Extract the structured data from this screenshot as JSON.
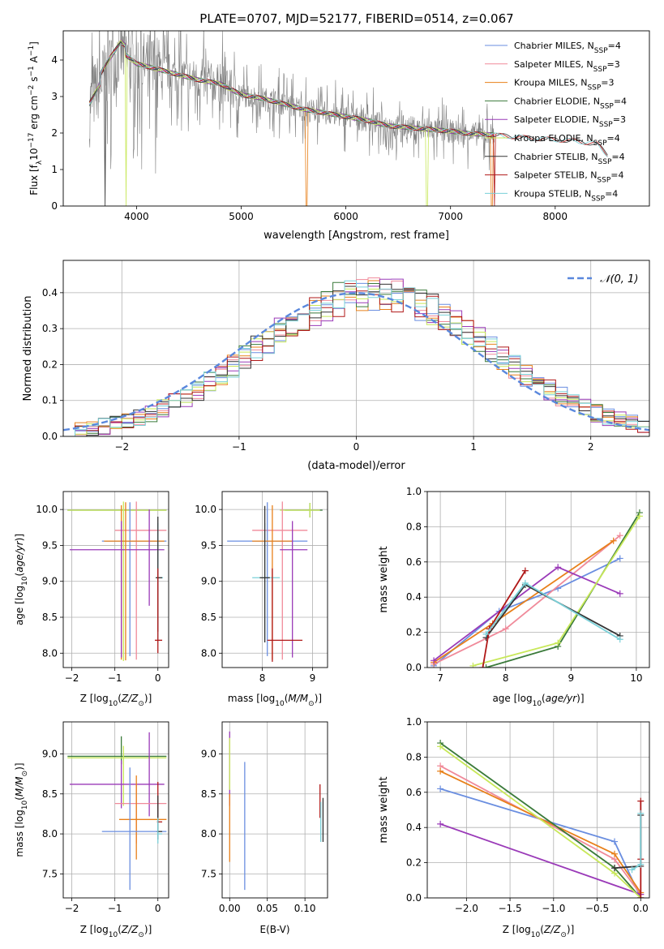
{
  "figure": {
    "title": "PLATE=0707, MJD=52177, FIBERID=0514, z=0.067"
  },
  "colors": {
    "chabrier_miles": "#6a8ee0",
    "salpeter_miles": "#f08a9a",
    "kroupa_miles": "#e8801a",
    "chabrier_elodie": "#3a7a3a",
    "salpeter_elodie": "#9a3ab8",
    "kroupa_elodie": "#c8e85a",
    "chabrier_stelib": "#333333",
    "salpeter_stelib": "#b01818",
    "kroupa_stelib": "#7ad0d8",
    "data": "#808080",
    "normal": "#5a88dd",
    "grid": "#b0b0b0"
  },
  "legend_labels": [
    {
      "base": "Chabrier MILES, N",
      "sub": "SSP",
      "tail": "=4"
    },
    {
      "base": "Salpeter MILES, N",
      "sub": "SSP",
      "tail": "=3"
    },
    {
      "base": "Kroupa MILES, N",
      "sub": "SSP",
      "tail": "=3"
    },
    {
      "base": "Chabrier ELODIE, N",
      "sub": "SSP",
      "tail": "=4"
    },
    {
      "base": "Salpeter ELODIE, N",
      "sub": "SSP",
      "tail": "=3"
    },
    {
      "base": "Kroupa ELODIE, N",
      "sub": "SSP",
      "tail": "=4"
    },
    {
      "base": "Chabrier STELIB, N",
      "sub": "SSP",
      "tail": "=4"
    },
    {
      "base": "Salpeter STELIB, N",
      "sub": "SSP",
      "tail": "=4"
    },
    {
      "base": "Kroupa STELIB, N",
      "sub": "SSP",
      "tail": "=4"
    }
  ],
  "chart_data": [
    {
      "id": "spectrum",
      "type": "line",
      "xlabel": "wavelength [Angstrom, rest frame]",
      "ylabel": "Flux [f",
      "ylabel_parts": {
        "pre": "Flux [f",
        "sub": "λ",
        "mid": "10",
        "sup1": "−17",
        "unit": " erg cm",
        "sup2": "−2",
        "s": " s",
        "sup3": "−1",
        "tail": " A",
        "sup4": "−1",
        "end": "]"
      },
      "xlim": [
        3300,
        8900
      ],
      "ylim": [
        0,
        4.8
      ],
      "xticks": [
        4000,
        5000,
        6000,
        7000,
        8000
      ],
      "yticks": [
        0,
        1,
        2,
        3,
        4
      ],
      "grid": false,
      "legend_placement": "upper-right",
      "continuum": {
        "x": [
          3550,
          3700,
          3850,
          4000,
          4200,
          4400,
          4600,
          4800,
          5000,
          5200,
          5400,
          5600,
          5800,
          6000,
          6200,
          6400,
          6600,
          6800,
          7000,
          7200,
          7400,
          7600,
          7800,
          8000,
          8200,
          8400,
          8500
        ],
        "y": [
          2.8,
          3.6,
          4.25,
          3.9,
          3.75,
          3.6,
          3.45,
          3.35,
          3.05,
          2.95,
          2.8,
          2.65,
          2.55,
          2.45,
          2.35,
          2.2,
          2.15,
          2.1,
          2.05,
          1.98,
          1.95,
          1.9,
          1.85,
          1.82,
          1.78,
          1.7,
          1.4
        ]
      }
    },
    {
      "id": "residuals",
      "type": "histogram",
      "xlabel": "(data-model)/error",
      "ylabel": "Normed distribution",
      "xlim": [
        -2.5,
        2.5
      ],
      "ylim": [
        0,
        0.49
      ],
      "xticks": [
        -2,
        -1,
        0,
        1,
        2
      ],
      "yticks": [
        0.0,
        0.1,
        0.2,
        0.3,
        0.4
      ],
      "grid": true,
      "legend_placement": "upper-right",
      "legend_label": "𝒩(0, 1)",
      "bin_width": 0.1,
      "bin_start": -2.5,
      "base_values": [
        0.02,
        0.02,
        0.03,
        0.035,
        0.04,
        0.045,
        0.05,
        0.06,
        0.08,
        0.095,
        0.1,
        0.11,
        0.13,
        0.15,
        0.17,
        0.19,
        0.21,
        0.22,
        0.24,
        0.26,
        0.28,
        0.29,
        0.3,
        0.32,
        0.33,
        0.35,
        0.36,
        0.37,
        0.38,
        0.39,
        0.4,
        0.42,
        0.41,
        0.42,
        0.43,
        0.42,
        0.41,
        0.42,
        0.43,
        0.42,
        0.4,
        0.38,
        0.36,
        0.34,
        0.31,
        0.29,
        0.26,
        0.24,
        0.2,
        0.18,
        0.16,
        0.14,
        0.13,
        0.11,
        0.1,
        0.09,
        0.08,
        0.06,
        0.05,
        0.04,
        0.035,
        0.03,
        0.03,
        0.025,
        0.03,
        0.02,
        0.02,
        0.025,
        0.03,
        0.03,
        0.03,
        0.025,
        0.03,
        0.03,
        0.03,
        0.03,
        0.03,
        0.03,
        0.03,
        0.03,
        0.03,
        0.03,
        0.03,
        0.03,
        0.03,
        0.03,
        0.03,
        0.03,
        0.03,
        0.03,
        0.03,
        0.03,
        0.03,
        0.03,
        0.03,
        0.03,
        0.03,
        0.03,
        0.03,
        0.03
      ]
    },
    {
      "id": "age_vs_Z",
      "type": "errorbar",
      "xlabel": "Z [log",
      "ylabel": "age  [log",
      "xlim": [
        -2.2,
        0.25
      ],
      "ylim": [
        7.8,
        10.25
      ],
      "xticks": [
        -2,
        -1,
        0
      ],
      "yticks": [
        8.0,
        8.5,
        9.0,
        9.5,
        10.0
      ],
      "grid": true,
      "bars": [
        {
          "c": "chabrier_elodie",
          "x": -0.85,
          "xerr": [
            1.25,
            1.05
          ],
          "y": 9.99,
          "yerr": [
            0,
            0
          ]
        },
        {
          "c": "kroupa_elodie",
          "x": -0.8,
          "xerr": [
            1.3,
            1.0
          ],
          "y": 9.99,
          "yerr": [
            2.1,
            0.12
          ]
        },
        {
          "c": "salpeter_miles",
          "x": -0.5,
          "xerr": [
            0.5,
            0.7
          ],
          "y": 9.71,
          "yerr": [
            1.8,
            0.4
          ]
        },
        {
          "c": "chabrier_miles",
          "x": -0.65,
          "xerr": [
            0.65,
            0.85
          ],
          "y": 9.56,
          "yerr": [
            1.6,
            0.54
          ]
        },
        {
          "c": "kroupa_miles",
          "x": -0.85,
          "xerr": [
            0.4,
            1.0
          ],
          "y": 9.56,
          "yerr": [
            1.65,
            0.5
          ]
        },
        {
          "c": "salpeter_elodie",
          "x": -0.85,
          "xerr": [
            1.2,
            1.0
          ],
          "y": 9.44,
          "yerr": [
            1.5,
            0.4
          ]
        },
        {
          "c": "salpeter_elodie",
          "x": -0.2,
          "xerr": [
            0,
            0
          ],
          "y": 9.44,
          "yerr": [
            0.78,
            0.56
          ]
        },
        {
          "c": "kroupa_stelib",
          "x": 0.0,
          "xerr": [
            0.05,
            0.12
          ],
          "y": 9.05,
          "yerr": [
            0.9,
            0.76
          ]
        },
        {
          "c": "chabrier_stelib",
          "x": 0.0,
          "xerr": [
            0.05,
            0.1
          ],
          "y": 9.05,
          "yerr": [
            0.75,
            0.85
          ]
        },
        {
          "c": "salpeter_stelib",
          "x": 0.0,
          "xerr": [
            0.07,
            0.1
          ],
          "y": 8.18,
          "yerr": [
            0.18,
            1.0
          ]
        },
        {
          "c": "kroupa_miles",
          "x": -0.75,
          "xerr": [
            0,
            0
          ],
          "y": 9.55,
          "yerr": [
            1.65,
            0.55
          ]
        }
      ]
    },
    {
      "id": "age_vs_mass",
      "type": "errorbar",
      "xlabel": "mass [log",
      "xlim": [
        7.2,
        9.3
      ],
      "ylim": [
        7.8,
        10.25
      ],
      "xticks": [
        8,
        9
      ],
      "yticks": [
        8.0,
        8.5,
        9.0,
        9.5,
        10.0
      ],
      "grid": true,
      "bars": [
        {
          "c": "chabrier_elodie",
          "x": 8.95,
          "xerr": [
            0.5,
            0.25
          ],
          "y": 9.99,
          "yerr": [
            0.1,
            0.1
          ]
        },
        {
          "c": "kroupa_elodie",
          "x": 8.95,
          "xerr": [
            0.6,
            0.2
          ],
          "y": 9.99,
          "yerr": [
            0.1,
            0.1
          ]
        },
        {
          "c": "salpeter_miles",
          "x": 8.4,
          "xerr": [
            0.6,
            0.5
          ],
          "y": 9.71,
          "yerr": [
            1.8,
            0.4
          ]
        },
        {
          "c": "chabrier_miles",
          "x": 8.1,
          "xerr": [
            0.8,
            0.8
          ],
          "y": 9.56,
          "yerr": [
            1.6,
            0.54
          ]
        },
        {
          "c": "kroupa_miles",
          "x": 8.2,
          "xerr": [
            0.4,
            0.4
          ],
          "y": 9.56,
          "yerr": [
            1.65,
            0.5
          ]
        },
        {
          "c": "salpeter_elodie",
          "x": 8.6,
          "xerr": [
            0.25,
            0.3
          ],
          "y": 9.44,
          "yerr": [
            1.5,
            0.4
          ]
        },
        {
          "c": "kroupa_stelib",
          "x": 8.05,
          "xerr": [
            0.25,
            0.3
          ],
          "y": 9.05,
          "yerr": [
            0.9,
            0.76
          ]
        },
        {
          "c": "chabrier_stelib",
          "x": 8.05,
          "xerr": [
            0.1,
            0.1
          ],
          "y": 9.05,
          "yerr": [
            0.9,
            1.0
          ]
        },
        {
          "c": "salpeter_stelib",
          "x": 8.2,
          "xerr": [
            0.1,
            0.6
          ],
          "y": 8.18,
          "yerr": [
            0.3,
            1.0
          ]
        }
      ]
    },
    {
      "id": "weight_vs_age",
      "type": "line",
      "xlabel": "age  [log",
      "ylabel": "mass weight",
      "xlim": [
        6.8,
        10.2
      ],
      "ylim": [
        0,
        1.0
      ],
      "xticks": [
        7,
        8,
        9,
        10
      ],
      "yticks": [
        0.0,
        0.2,
        0.4,
        0.6,
        0.8,
        1.0
      ],
      "grid": true,
      "series": [
        {
          "c": "chabrier_miles",
          "x": [
            6.9,
            7.9,
            8.8,
            9.75
          ],
          "y": [
            0.01,
            0.32,
            0.45,
            0.62
          ]
        },
        {
          "c": "salpeter_miles",
          "x": [
            6.9,
            8.0,
            9.75
          ],
          "y": [
            0.02,
            0.22,
            0.75
          ]
        },
        {
          "c": "kroupa_miles",
          "x": [
            6.9,
            7.8,
            9.65
          ],
          "y": [
            0.03,
            0.25,
            0.72
          ]
        },
        {
          "c": "chabrier_elodie",
          "x": [
            7.7,
            8.8,
            10.05
          ],
          "y": [
            0.0,
            0.12,
            0.88
          ]
        },
        {
          "c": "salpeter_elodie",
          "x": [
            6.9,
            8.8,
            9.75
          ],
          "y": [
            0.04,
            0.57,
            0.42
          ]
        },
        {
          "c": "kroupa_elodie",
          "x": [
            7.5,
            8.8,
            10.05
          ],
          "y": [
            0.01,
            0.14,
            0.86
          ]
        },
        {
          "c": "chabrier_stelib",
          "x": [
            7.7,
            8.3,
            9.75
          ],
          "y": [
            0.17,
            0.47,
            0.18
          ]
        },
        {
          "c": "salpeter_stelib",
          "x": [
            7.65,
            7.75,
            8.3
          ],
          "y": [
            0.0,
            0.22,
            0.55
          ]
        },
        {
          "c": "kroupa_stelib",
          "x": [
            7.7,
            8.3,
            9.75
          ],
          "y": [
            0.19,
            0.48,
            0.16
          ]
        }
      ]
    },
    {
      "id": "mass_vs_Z",
      "type": "errorbar",
      "xlabel": "Z [log",
      "ylabel": "mass [log",
      "xlim": [
        -2.2,
        0.25
      ],
      "ylim": [
        7.2,
        9.4
      ],
      "xticks": [
        -2,
        -1,
        0
      ],
      "yticks": [
        7.5,
        8.0,
        8.5,
        9.0
      ],
      "grid": true,
      "bars": [
        {
          "c": "chabrier_elodie",
          "x": -0.85,
          "xerr": [
            1.25,
            1.05
          ],
          "y": 8.97,
          "yerr": [
            0.1,
            0.25
          ]
        },
        {
          "c": "kroupa_elodie",
          "x": -0.8,
          "xerr": [
            1.3,
            1.0
          ],
          "y": 8.95,
          "yerr": [
            0.6,
            0.15
          ]
        },
        {
          "c": "salpeter_elodie",
          "x": -0.85,
          "xerr": [
            1.2,
            1.0
          ],
          "y": 8.62,
          "yerr": [
            0.3,
            0.3
          ]
        },
        {
          "c": "salpeter_elodie",
          "x": -0.2,
          "xerr": [
            0,
            0
          ],
          "y": 8.62,
          "yerr": [
            0.4,
            0.65
          ]
        },
        {
          "c": "salpeter_miles",
          "x": -0.5,
          "xerr": [
            0.5,
            0.7
          ],
          "y": 8.38,
          "yerr": [
            0.5,
            0.25
          ]
        },
        {
          "c": "kroupa_miles",
          "x": -0.5,
          "xerr": [
            0.4,
            0.7
          ],
          "y": 8.18,
          "yerr": [
            0.5,
            0.55
          ]
        },
        {
          "c": "chabrier_miles",
          "x": -0.65,
          "xerr": [
            0.65,
            0.85
          ],
          "y": 8.03,
          "yerr": [
            0.73,
            0.8
          ]
        },
        {
          "c": "salpeter_stelib",
          "x": 0.0,
          "xerr": [
            0.02,
            0.1
          ],
          "y": 8.15,
          "yerr": [
            0.1,
            0.5
          ]
        },
        {
          "c": "chabrier_stelib",
          "x": 0.0,
          "xerr": [
            0.02,
            0.1
          ],
          "y": 8.03,
          "yerr": [
            0.1,
            0.45
          ]
        },
        {
          "c": "kroupa_stelib",
          "x": 0.0,
          "xerr": [
            0.02,
            0.1
          ],
          "y": 8.0,
          "yerr": [
            0.12,
            0.2
          ]
        }
      ]
    },
    {
      "id": "mass_vs_ebv",
      "type": "errorbar",
      "xlabel": "E(B-V)",
      "xlim": [
        -0.01,
        0.13
      ],
      "ylim": [
        7.2,
        9.4
      ],
      "xticks": [
        0.0,
        0.05,
        0.1
      ],
      "xticklabels": [
        "0.00",
        "0.05",
        "0.10"
      ],
      "yticks": [
        7.5,
        8.0,
        8.5,
        9.0
      ],
      "grid": true,
      "bars": [
        {
          "c": "salpeter_elodie",
          "x": 0.0,
          "xerr": [
            0,
            0
          ],
          "y": 8.8,
          "yerr": [
            0.45,
            0.48
          ]
        },
        {
          "c": "kroupa_elodie",
          "x": 0.0,
          "xerr": [
            0,
            0
          ],
          "y": 8.9,
          "yerr": [
            0.35,
            0.3
          ]
        },
        {
          "c": "kroupa_miles",
          "x": 0.0,
          "xerr": [
            0,
            0
          ],
          "y": 8.2,
          "yerr": [
            0.55,
            0.3
          ]
        },
        {
          "c": "chabrier_miles",
          "x": 0.02,
          "xerr": [
            0,
            0
          ],
          "y": 8.1,
          "yerr": [
            0.8,
            0.8
          ]
        },
        {
          "c": "salpeter_stelib",
          "x": 0.12,
          "xerr": [
            0,
            0
          ],
          "y": 8.4,
          "yerr": [
            0.2,
            0.22
          ]
        },
        {
          "c": "kroupa_stelib",
          "x": 0.121,
          "xerr": [
            0,
            0
          ],
          "y": 8.1,
          "yerr": [
            0.2,
            0.3
          ]
        },
        {
          "c": "chabrier_stelib",
          "x": 0.124,
          "xerr": [
            0,
            0
          ],
          "y": 8.15,
          "yerr": [
            0.25,
            0.3
          ]
        }
      ]
    },
    {
      "id": "weight_vs_Z",
      "type": "line",
      "xlabel": "Z [log",
      "ylabel": "mass weight",
      "xlim": [
        -2.45,
        0.1
      ],
      "ylim": [
        0,
        1.0
      ],
      "xticks": [
        -2.0,
        -1.5,
        -1.0,
        -0.5,
        0.0
      ],
      "xticklabels": [
        "−2.0",
        "−1.5",
        "−1.0",
        "−0.5",
        "0.0"
      ],
      "yticks": [
        0.0,
        0.2,
        0.4,
        0.6,
        0.8,
        1.0
      ],
      "grid": true,
      "series": [
        {
          "c": "chabrier_miles",
          "x": [
            -2.3,
            -0.3,
            0.0
          ],
          "y": [
            0.62,
            0.32,
            0.0
          ]
        },
        {
          "c": "salpeter_miles",
          "x": [
            -2.3,
            -0.3,
            0.0
          ],
          "y": [
            0.75,
            0.22,
            0.02
          ]
        },
        {
          "c": "kroupa_miles",
          "x": [
            -2.3,
            -0.3,
            0.0
          ],
          "y": [
            0.72,
            0.25,
            0.03
          ]
        },
        {
          "c": "chabrier_elodie",
          "x": [
            -2.3,
            -0.3,
            0.0
          ],
          "y": [
            0.88,
            0.17,
            0.0
          ]
        },
        {
          "c": "salpeter_elodie",
          "x": [
            -2.3,
            0.0
          ],
          "y": [
            0.42,
            0.02
          ]
        },
        {
          "c": "kroupa_elodie",
          "x": [
            -2.3,
            -0.3,
            0.0
          ],
          "y": [
            0.86,
            0.14,
            0.0
          ]
        },
        {
          "c": "chabrier_stelib",
          "x": [
            -0.3,
            0.0,
            0.0
          ],
          "y": [
            0.17,
            0.18,
            0.47
          ]
        },
        {
          "c": "salpeter_stelib",
          "x": [
            0.0,
            0.0,
            0.0
          ],
          "y": [
            0.0,
            0.22,
            0.55
          ]
        },
        {
          "c": "kroupa_stelib",
          "x": [
            -0.1,
            0.0,
            0.0
          ],
          "y": [
            0.16,
            0.19,
            0.48
          ]
        }
      ]
    }
  ]
}
